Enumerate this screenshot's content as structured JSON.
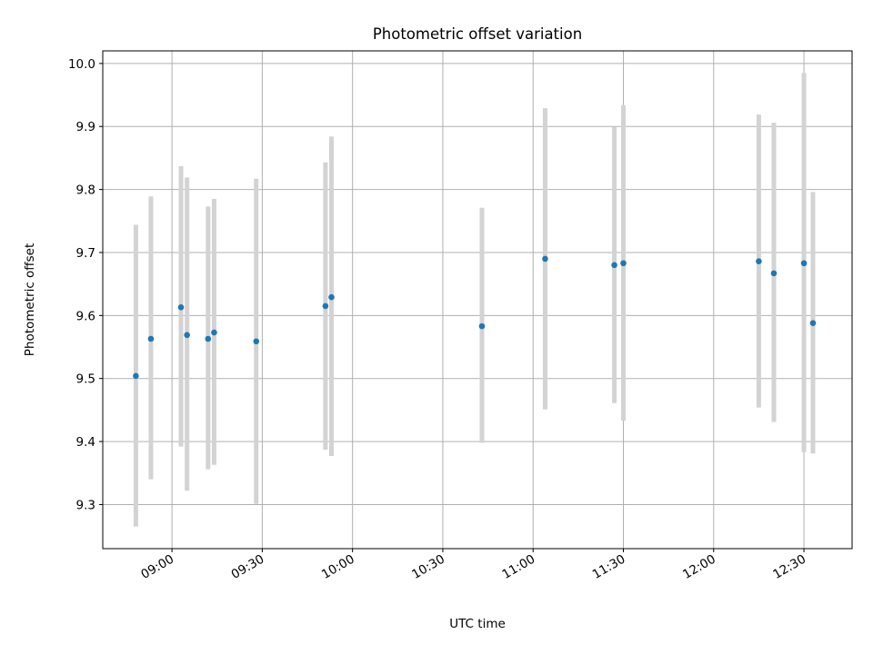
{
  "chart_data": {
    "type": "scatter",
    "title": "Photometric offset variation",
    "xlabel": "UTC time",
    "ylabel": "Photometric offset",
    "x_tick_labels": [
      "09:00",
      "09:30",
      "10:00",
      "10:30",
      "11:00",
      "11:30",
      "12:00",
      "12:30"
    ],
    "x_tick_minutes": [
      540,
      570,
      600,
      630,
      660,
      690,
      720,
      750
    ],
    "y_ticks": [
      9.3,
      9.4,
      9.5,
      9.6,
      9.7,
      9.8,
      9.9,
      10.0
    ],
    "y_tick_labels": [
      "9.3",
      "9.4",
      "9.5",
      "9.6",
      "9.7",
      "9.8",
      "9.9",
      "10.0"
    ],
    "xlim": [
      "08:37",
      "12:46"
    ],
    "ylim": [
      9.23,
      10.02
    ],
    "grid": true,
    "series": [
      {
        "x": [
          "08:48",
          "08:53",
          "09:03",
          "09:05",
          "09:12",
          "09:14",
          "09:28",
          "09:51",
          "09:53",
          "10:43",
          "11:04",
          "11:27",
          "11:30",
          "12:15",
          "12:20",
          "12:30",
          "12:33"
        ],
        "y": [
          9.504,
          9.563,
          9.613,
          9.569,
          9.563,
          9.573,
          9.559,
          9.615,
          9.629,
          9.583,
          9.69,
          9.68,
          9.683,
          9.686,
          9.667,
          9.683,
          9.588
        ],
        "err_low": [
          9.265,
          9.34,
          9.392,
          9.322,
          9.356,
          9.363,
          9.301,
          9.387,
          9.377,
          9.398,
          9.451,
          9.461,
          9.433,
          9.454,
          9.431,
          9.383,
          9.381
        ],
        "err_high": [
          9.744,
          9.789,
          9.837,
          9.819,
          9.773,
          9.785,
          9.817,
          9.843,
          9.884,
          9.771,
          9.929,
          9.899,
          9.934,
          9.919,
          9.906,
          9.985,
          9.796
        ],
        "marker_color": "#1f77b4",
        "errorbar_color": "#d3d3d3"
      }
    ]
  }
}
